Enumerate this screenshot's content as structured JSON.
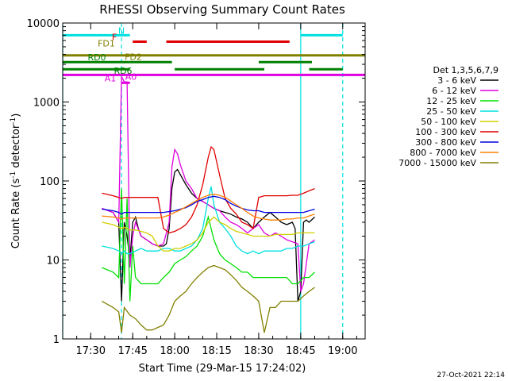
{
  "chart_data": {
    "type": "line",
    "title": "RHESSI Observing Summary Count Rates",
    "xlabel": "Start Time (29-Mar-15 17:24:02)",
    "ylabel_main": "Count Rate (s",
    "ylabel_sup1": "-1",
    "ylabel_mid": " detector",
    "ylabel_sup2": "-1",
    "ylabel_end": ")",
    "y_scale": "log",
    "ylim": [
      1,
      10000
    ],
    "xlim_minutes": [
      -4,
      104
    ],
    "x_ticks": [
      {
        "label": "17:30",
        "m": 6
      },
      {
        "label": "17:45",
        "m": 21
      },
      {
        "label": "18:00",
        "m": 36
      },
      {
        "label": "18:15",
        "m": 51
      },
      {
        "label": "18:30",
        "m": 66
      },
      {
        "label": "18:45",
        "m": 81
      },
      {
        "label": "19:00",
        "m": 96
      }
    ],
    "y_ticks": [
      {
        "label": "1",
        "v": 1
      },
      {
        "label": "10",
        "v": 10
      },
      {
        "label": "100",
        "v": 100
      },
      {
        "label": "1000",
        "v": 1000
      },
      {
        "label": "10000",
        "v": 10000
      }
    ],
    "legend_title": "Det 1,3,5,6,7,9",
    "legend_position": "right",
    "series": [
      {
        "name": "3 - 6 keV",
        "color": "#000000",
        "x": [
          10,
          14,
          16,
          17,
          18,
          19,
          20,
          21,
          22,
          23,
          24,
          26,
          28,
          30,
          32,
          33,
          34,
          35,
          36,
          37,
          38,
          40,
          42,
          44,
          46,
          48,
          50,
          52,
          54,
          56,
          58,
          60,
          62,
          64,
          66,
          68,
          70,
          72,
          74,
          76,
          78,
          79,
          80,
          81,
          82,
          83,
          84,
          86
        ],
        "y": [
          45,
          40,
          30,
          3,
          30,
          20,
          10,
          30,
          35,
          25,
          20,
          18,
          16,
          15,
          15,
          16,
          25,
          80,
          130,
          140,
          120,
          90,
          70,
          60,
          55,
          50,
          45,
          42,
          40,
          38,
          35,
          33,
          30,
          25,
          30,
          35,
          40,
          35,
          30,
          28,
          30,
          25,
          3,
          4,
          30,
          32,
          30,
          35
        ]
      },
      {
        "name": "6 - 12 keV",
        "color": "#e000e0",
        "x": [
          10,
          14,
          16,
          17,
          18,
          19,
          20,
          21,
          22,
          24,
          26,
          28,
          30,
          32,
          34,
          35,
          36,
          37,
          38,
          40,
          42,
          44,
          46,
          48,
          50,
          52,
          54,
          56,
          58,
          60,
          62,
          64,
          66,
          68,
          70,
          72,
          74,
          76,
          78,
          80,
          81,
          82,
          84,
          86
        ],
        "y": [
          45,
          40,
          30,
          2100,
          1800,
          1800,
          8,
          20,
          30,
          20,
          18,
          16,
          15,
          16,
          30,
          150,
          250,
          220,
          160,
          100,
          80,
          60,
          55,
          50,
          45,
          42,
          35,
          30,
          28,
          25,
          22,
          25,
          28,
          22,
          20,
          22,
          20,
          18,
          17,
          16,
          4,
          5,
          16,
          18
        ]
      },
      {
        "name": "12 - 25 keV",
        "color": "#00e000",
        "x": [
          10,
          14,
          16,
          17,
          18,
          19,
          20,
          21,
          22,
          24,
          26,
          28,
          30,
          32,
          34,
          36,
          38,
          40,
          42,
          44,
          46,
          48,
          50,
          52,
          54,
          56,
          58,
          60,
          62,
          64,
          66,
          68,
          70,
          72,
          74,
          76,
          78,
          80,
          82,
          84,
          86
        ],
        "y": [
          8,
          7,
          6,
          80,
          5,
          60,
          3,
          15,
          6,
          5,
          5,
          5,
          5,
          6,
          7,
          9,
          10,
          11,
          13,
          15,
          20,
          35,
          18,
          12,
          10,
          9,
          8,
          7,
          7,
          6,
          6,
          6,
          6,
          6,
          6,
          6,
          5,
          5,
          6,
          6,
          7
        ]
      },
      {
        "name": "25 - 50 keV",
        "color": "#00e0e0",
        "x": [
          10,
          14,
          16,
          17,
          18,
          19,
          20,
          22,
          24,
          26,
          28,
          30,
          32,
          34,
          36,
          38,
          40,
          42,
          44,
          46,
          48,
          49,
          50,
          52,
          54,
          56,
          58,
          60,
          62,
          64,
          66,
          68,
          70,
          72,
          74,
          76,
          78,
          80,
          82,
          84,
          86
        ],
        "y": [
          15,
          14,
          13,
          12,
          13,
          12,
          12,
          13,
          14,
          13,
          13,
          13,
          14,
          14,
          13,
          13,
          14,
          15,
          18,
          25,
          60,
          85,
          50,
          30,
          25,
          20,
          15,
          13,
          12,
          13,
          12,
          13,
          13,
          13,
          13,
          14,
          14,
          15,
          15,
          16,
          17
        ]
      },
      {
        "name": "50 - 100 keV",
        "color": "#d0d000",
        "x": [
          10,
          14,
          16,
          17,
          18,
          20,
          22,
          24,
          26,
          28,
          30,
          32,
          34,
          36,
          38,
          40,
          42,
          44,
          46,
          48,
          50,
          52,
          54,
          56,
          58,
          60,
          62,
          64,
          66,
          68,
          70,
          72,
          74,
          76,
          78,
          80,
          82,
          84,
          86
        ],
        "y": [
          30,
          28,
          26,
          25,
          26,
          24,
          24,
          23,
          22,
          20,
          15,
          13,
          13,
          14,
          14,
          15,
          16,
          18,
          22,
          30,
          35,
          30,
          28,
          25,
          23,
          22,
          21,
          20,
          20,
          20,
          20,
          21,
          21,
          21,
          21,
          22,
          22,
          22,
          22
        ]
      },
      {
        "name": "100 - 300 keV",
        "color": "#e00000",
        "x": [
          10,
          14,
          16,
          17,
          18,
          20,
          22,
          24,
          26,
          28,
          30,
          32,
          34,
          36,
          38,
          40,
          42,
          44,
          46,
          48,
          49,
          50,
          52,
          54,
          56,
          58,
          60,
          62,
          64,
          66,
          68,
          70,
          72,
          74,
          76,
          78,
          80,
          82,
          84,
          86
        ],
        "y": [
          70,
          65,
          62,
          60,
          62,
          62,
          62,
          62,
          62,
          62,
          62,
          25,
          22,
          23,
          25,
          28,
          35,
          50,
          90,
          200,
          270,
          250,
          120,
          60,
          45,
          38,
          30,
          28,
          25,
          62,
          65,
          65,
          65,
          65,
          65,
          66,
          66,
          70,
          75,
          80
        ]
      },
      {
        "name": "300 - 800 keV",
        "color": "#0000e0",
        "x": [
          10,
          14,
          16,
          17,
          18,
          20,
          22,
          24,
          26,
          28,
          30,
          32,
          34,
          36,
          38,
          40,
          42,
          44,
          46,
          48,
          50,
          52,
          54,
          56,
          58,
          60,
          62,
          64,
          66,
          68,
          70,
          72,
          74,
          76,
          78,
          80,
          82,
          84,
          86
        ],
        "y": [
          44,
          42,
          40,
          38,
          40,
          40,
          40,
          40,
          40,
          40,
          40,
          40,
          41,
          42,
          44,
          46,
          50,
          55,
          58,
          62,
          64,
          62,
          58,
          52,
          48,
          45,
          43,
          42,
          42,
          40,
          40,
          40,
          40,
          40,
          40,
          40,
          40,
          42,
          44
        ]
      },
      {
        "name": "800 - 7000 keV",
        "color": "#ff8000",
        "x": [
          10,
          14,
          16,
          17,
          18,
          20,
          22,
          24,
          26,
          28,
          30,
          32,
          34,
          36,
          38,
          40,
          42,
          44,
          46,
          48,
          50,
          52,
          54,
          56,
          58,
          60,
          62,
          64,
          66,
          68,
          70,
          72,
          74,
          76,
          78,
          80,
          82,
          84,
          86
        ],
        "y": [
          36,
          35,
          34,
          33,
          34,
          34,
          34,
          34,
          34,
          34,
          34,
          35,
          37,
          40,
          43,
          47,
          52,
          57,
          62,
          66,
          68,
          66,
          62,
          56,
          50,
          45,
          40,
          36,
          34,
          33,
          32,
          32,
          32,
          33,
          33,
          34,
          34,
          36,
          38
        ]
      },
      {
        "name": "7000 - 15000 keV",
        "color": "#808000",
        "x": [
          10,
          14,
          16,
          17,
          18,
          20,
          22,
          24,
          26,
          28,
          30,
          32,
          34,
          36,
          38,
          40,
          42,
          44,
          46,
          48,
          50,
          52,
          54,
          56,
          58,
          60,
          62,
          64,
          66,
          68,
          70,
          72,
          74,
          76,
          78,
          80,
          82,
          84,
          86
        ],
        "y": [
          3,
          2.5,
          2.2,
          1.2,
          2.5,
          2,
          1.8,
          1.5,
          1.3,
          1.3,
          1.4,
          1.5,
          2,
          3,
          3.5,
          4,
          5,
          6,
          7,
          8,
          8.5,
          8,
          7.5,
          6.5,
          5.5,
          4.5,
          4,
          3.5,
          3,
          1.2,
          2.5,
          2.5,
          3,
          3,
          3,
          3,
          3.5,
          4,
          4.5
        ]
      }
    ],
    "flags": [
      {
        "label": "N",
        "color": "#00e0e0",
        "y": 7000,
        "segments": [
          [
            -4,
            20
          ],
          [
            81,
            96
          ]
        ]
      },
      {
        "label": "F",
        "color": "#e00000",
        "y": 5800,
        "segments": [
          [
            21,
            26
          ],
          [
            33,
            77
          ]
        ]
      },
      {
        "label": "FD1",
        "color": "#808000",
        "y": 4800,
        "segments": []
      },
      {
        "label": "FD2",
        "color": "#808000",
        "y": 3900,
        "segments": [
          [
            -4,
            104
          ]
        ]
      },
      {
        "label": "RD0",
        "color": "#008000",
        "y": 3200,
        "segments": [
          [
            -4,
            20
          ],
          [
            20,
            35
          ],
          [
            66,
            85
          ]
        ]
      },
      {
        "label": "RD6",
        "color": "#008000",
        "y": 2600,
        "segments": [
          [
            -4,
            20
          ],
          [
            36,
            68
          ],
          [
            84,
            96
          ]
        ]
      },
      {
        "label": "A0",
        "color": "#e000e0",
        "y": 2200,
        "segments": [
          [
            -4,
            104
          ]
        ]
      },
      {
        "label": "A1",
        "color": "#e000e0",
        "y": 1750,
        "segments": [
          [
            17,
            20
          ]
        ]
      }
    ],
    "markers": [
      {
        "m": -4,
        "color": "#00e0e0",
        "style": "solid"
      },
      {
        "m": 17,
        "color": "#00e0e0",
        "style": "dashed"
      },
      {
        "m": 81,
        "color": "#00e0e0",
        "style": "solid"
      },
      {
        "m": 96,
        "color": "#00e0e0",
        "style": "dashed"
      }
    ]
  },
  "footer": {
    "date": "27-Oct-2021 22:14"
  }
}
